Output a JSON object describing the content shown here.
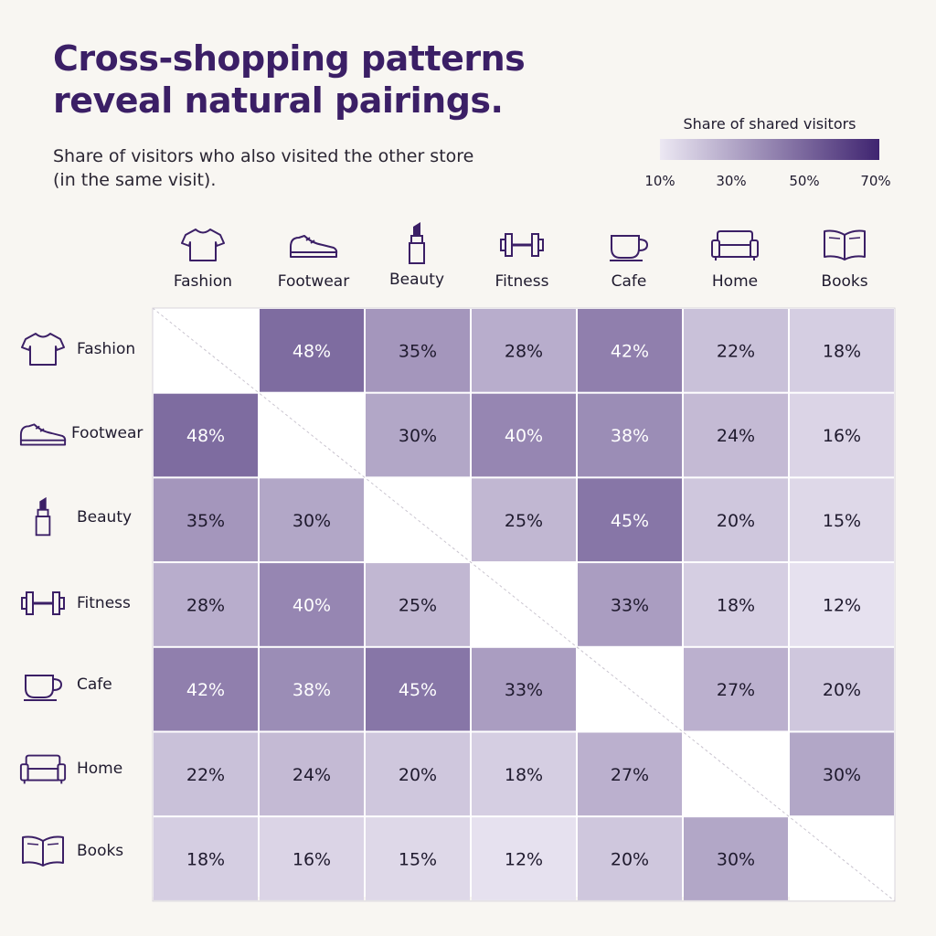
{
  "title": "Cross-shopping patterns reveal natural pairings.",
  "subtitle": "Share of visitors who also visited the other store (in the same visit).",
  "legend": {
    "title": "Share of shared visitors",
    "ticks": [
      "10%",
      "30%",
      "50%",
      "70%"
    ],
    "colors": [
      "#ece8f3",
      "#3f2470"
    ]
  },
  "icons": [
    "tshirt-icon",
    "sneaker-icon",
    "lipstick-icon",
    "dumbbell-icon",
    "coffee-cup-icon",
    "sofa-icon",
    "open-book-icon"
  ],
  "chart_data": {
    "type": "heatmap",
    "title": "Cross-shopping patterns reveal natural pairings.",
    "subtitle": "Share of visitors who also visited the other store (in the same visit).",
    "colorbar_label": "Share of shared visitors",
    "value_range": [
      10,
      70
    ],
    "unit": "%",
    "rows": [
      "Fashion",
      "Footwear",
      "Beauty",
      "Fitness",
      "Cafe",
      "Home",
      "Books"
    ],
    "columns": [
      "Fashion",
      "Footwear",
      "Beauty",
      "Fitness",
      "Cafe",
      "Home",
      "Books"
    ],
    "values": [
      [
        null,
        48,
        35,
        28,
        42,
        22,
        18
      ],
      [
        48,
        null,
        30,
        40,
        38,
        24,
        16
      ],
      [
        35,
        30,
        null,
        25,
        45,
        20,
        15
      ],
      [
        28,
        40,
        25,
        null,
        33,
        18,
        12
      ],
      [
        42,
        38,
        45,
        33,
        null,
        27,
        20
      ],
      [
        22,
        24,
        20,
        18,
        27,
        null,
        30
      ],
      [
        18,
        16,
        15,
        12,
        20,
        30,
        null
      ]
    ]
  }
}
